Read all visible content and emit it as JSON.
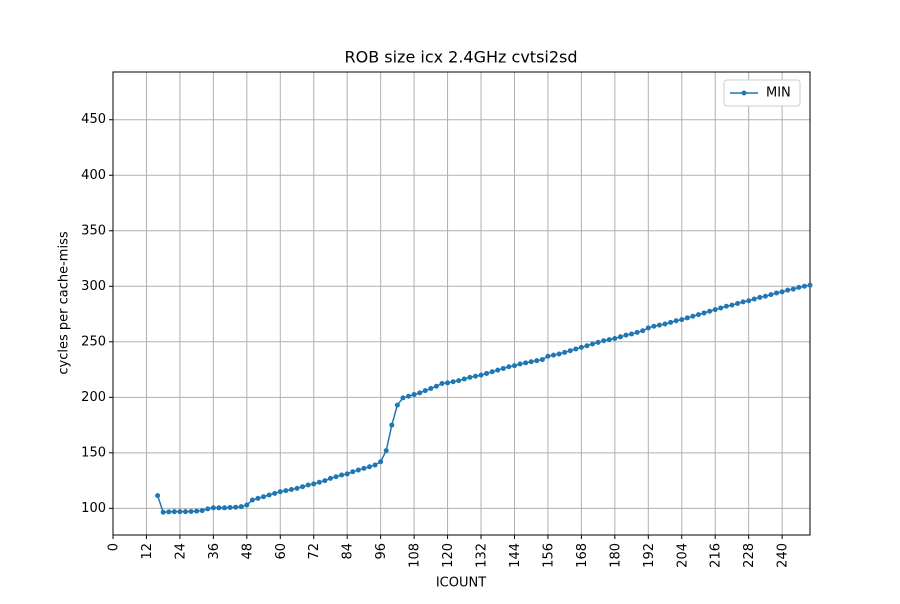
{
  "chart_data": {
    "type": "line",
    "title": "ROB size icx 2.4GHz cvtsi2sd",
    "xlabel": "ICOUNT",
    "ylabel": "cycles per cache-miss",
    "x": [
      16,
      18,
      20,
      22,
      24,
      26,
      28,
      30,
      32,
      34,
      36,
      38,
      40,
      42,
      44,
      46,
      48,
      50,
      52,
      54,
      56,
      58,
      60,
      62,
      64,
      66,
      68,
      70,
      72,
      74,
      76,
      78,
      80,
      82,
      84,
      86,
      88,
      90,
      92,
      94,
      96,
      98,
      100,
      102,
      104,
      106,
      108,
      110,
      112,
      114,
      116,
      118,
      120,
      122,
      124,
      126,
      128,
      130,
      132,
      134,
      136,
      138,
      140,
      142,
      144,
      146,
      148,
      150,
      152,
      154,
      156,
      158,
      160,
      162,
      164,
      166,
      168,
      170,
      172,
      174,
      176,
      178,
      180,
      182,
      184,
      186,
      188,
      190,
      192,
      194,
      196,
      198,
      200,
      202,
      204,
      206,
      208,
      210,
      212,
      214,
      216,
      218,
      220,
      222,
      224,
      226,
      228,
      230,
      232,
      234,
      236,
      238,
      240,
      242,
      244,
      246,
      248,
      250
    ],
    "series": [
      {
        "name": "MIN",
        "color": "#1f77b4",
        "values": [
          111.5,
          96.5,
          96.8,
          97,
          97,
          97,
          97.2,
          97.5,
          98,
          99.5,
          100.5,
          100.5,
          100.5,
          100.8,
          101,
          101.5,
          103,
          107.5,
          109,
          110.5,
          112,
          113.5,
          115,
          116,
          117,
          118,
          119.5,
          121,
          122,
          123.5,
          125,
          127,
          128.5,
          130,
          131,
          133,
          134.5,
          136,
          137.5,
          139,
          142,
          152,
          175,
          193,
          199.5,
          201,
          202.5,
          204,
          206,
          208,
          210,
          212.5,
          213,
          214,
          215,
          216.5,
          218,
          219,
          220,
          221.5,
          223,
          224.5,
          226,
          227.5,
          228.5,
          230,
          231,
          232,
          233,
          234,
          237,
          238,
          239,
          240.5,
          242,
          243.5,
          245,
          246.5,
          248,
          249.5,
          251,
          252,
          253,
          254.5,
          256,
          257,
          258.5,
          260,
          262.5,
          264,
          265,
          266,
          267.5,
          269,
          270,
          271.5,
          273,
          274.5,
          276,
          277.5,
          279,
          280.5,
          282,
          283,
          284.5,
          286,
          287,
          288.5,
          290,
          291,
          292.5,
          294,
          295,
          296.5,
          297.5,
          299,
          300,
          301
        ]
      }
    ],
    "xlim": [
      0,
      250
    ],
    "ylim": [
      76,
      493
    ],
    "xticks": [
      0,
      12,
      24,
      36,
      48,
      60,
      72,
      84,
      96,
      108,
      120,
      132,
      144,
      156,
      168,
      180,
      192,
      204,
      216,
      228,
      240
    ],
    "yticks": [
      100,
      150,
      200,
      250,
      300,
      350,
      400,
      450
    ],
    "grid": true,
    "legend": "upper right"
  }
}
